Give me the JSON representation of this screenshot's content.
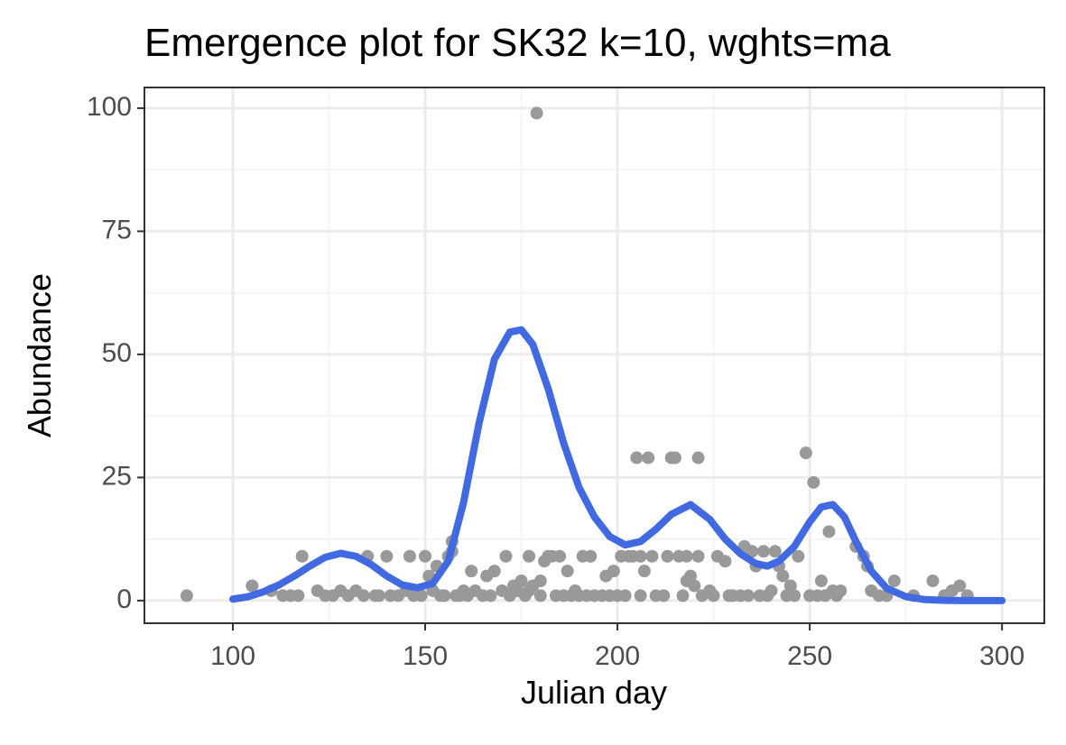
{
  "chart_data": {
    "type": "scatter",
    "title": "Emergence plot for SK32 k=10, wghts=ma",
    "x_label": "Julian day",
    "y_label": "Abundance",
    "xlim": [
      77,
      311
    ],
    "ylim": [
      -4.6,
      104.2
    ],
    "xticks": [
      100,
      150,
      200,
      250,
      300
    ],
    "yticks": [
      0,
      25,
      50,
      75,
      100
    ],
    "grid": true,
    "minor_grid": true,
    "series": [
      {
        "type": "scatter",
        "color": "#999999",
        "x": [
          88,
          105,
          110,
          113,
          115,
          117,
          118,
          122,
          124,
          126,
          128,
          130,
          132,
          134,
          135,
          137,
          138,
          140,
          141,
          143,
          145,
          146,
          147,
          149,
          150,
          151,
          152,
          153,
          154,
          155,
          156,
          157,
          157,
          158,
          159,
          160,
          161,
          162,
          163,
          165,
          166,
          167,
          168,
          170,
          171,
          172,
          173,
          174,
          175,
          176,
          177,
          177,
          178,
          179,
          180,
          180,
          181,
          182,
          183,
          184,
          185,
          186,
          187,
          188,
          189,
          190,
          191,
          192,
          193,
          194,
          196,
          197,
          198,
          199,
          200,
          201,
          202,
          203,
          204,
          205,
          206,
          206,
          207,
          208,
          209,
          210,
          212,
          213,
          214,
          215,
          216,
          217,
          218,
          218,
          219,
          220,
          221,
          221,
          222,
          224,
          225,
          226,
          228,
          229,
          230,
          232,
          233,
          234,
          235,
          236,
          237,
          238,
          239,
          240,
          241,
          242,
          243,
          244,
          245,
          246,
          247,
          249,
          250,
          251,
          252,
          253,
          254,
          255,
          256,
          257,
          258,
          262,
          264,
          265,
          266,
          268,
          270,
          272,
          277,
          282,
          285,
          287,
          289,
          291
        ],
        "values": [
          1,
          3,
          2,
          1,
          1,
          1,
          9,
          2,
          1,
          1,
          2,
          1,
          2,
          1,
          9,
          1,
          1,
          9,
          1,
          1,
          2,
          9,
          1,
          1,
          9,
          5,
          2,
          7,
          1,
          1,
          9,
          10,
          12,
          1,
          1,
          2,
          1,
          6,
          2,
          1,
          5,
          1,
          6,
          2,
          9,
          1,
          3,
          2,
          4,
          1,
          9,
          2,
          3,
          99,
          4,
          1,
          8,
          9,
          9,
          1,
          9,
          1,
          6,
          1,
          2,
          1,
          9,
          1,
          9,
          1,
          1,
          5,
          1,
          6,
          1,
          9,
          1,
          9,
          9,
          29,
          9,
          1,
          6,
          29,
          9,
          1,
          1,
          9,
          29,
          29,
          9,
          1,
          4,
          9,
          5,
          3,
          9,
          29,
          1,
          2,
          1,
          9,
          8,
          1,
          1,
          1,
          11,
          1,
          10,
          7,
          1,
          10,
          1,
          2,
          10,
          7,
          5,
          1,
          3,
          1,
          9,
          30,
          1,
          24,
          1,
          4,
          1,
          14,
          2,
          1,
          2,
          11,
          9,
          7,
          2,
          1,
          1,
          4,
          1,
          4,
          1,
          2,
          3,
          1
        ]
      },
      {
        "type": "line",
        "color": "#4169e1",
        "x": [
          100,
          104,
          108,
          112,
          116,
          120,
          124,
          128,
          132,
          136,
          140,
          144,
          148,
          152,
          156,
          160,
          164,
          168,
          172,
          175,
          178,
          182,
          186,
          190,
          194,
          198,
          202,
          206,
          210,
          214,
          219,
          224,
          228,
          232,
          236,
          239,
          242,
          246,
          250,
          253,
          256,
          259,
          262,
          266,
          270,
          275,
          280,
          285,
          290,
          300
        ],
        "values": [
          0.3,
          0.8,
          1.8,
          3.2,
          5,
          7,
          8.8,
          9.6,
          9,
          7.3,
          5,
          3.2,
          2.6,
          3.5,
          8,
          20,
          36,
          49,
          54.5,
          55,
          52,
          43,
          32,
          23,
          17,
          13,
          11.3,
          12,
          14.5,
          17.5,
          19.5,
          16.5,
          12.5,
          9.5,
          7.5,
          7,
          8,
          11,
          16,
          19,
          19.5,
          17,
          12,
          6,
          2.5,
          0.8,
          0.2,
          0.05,
          0,
          0
        ]
      }
    ]
  }
}
